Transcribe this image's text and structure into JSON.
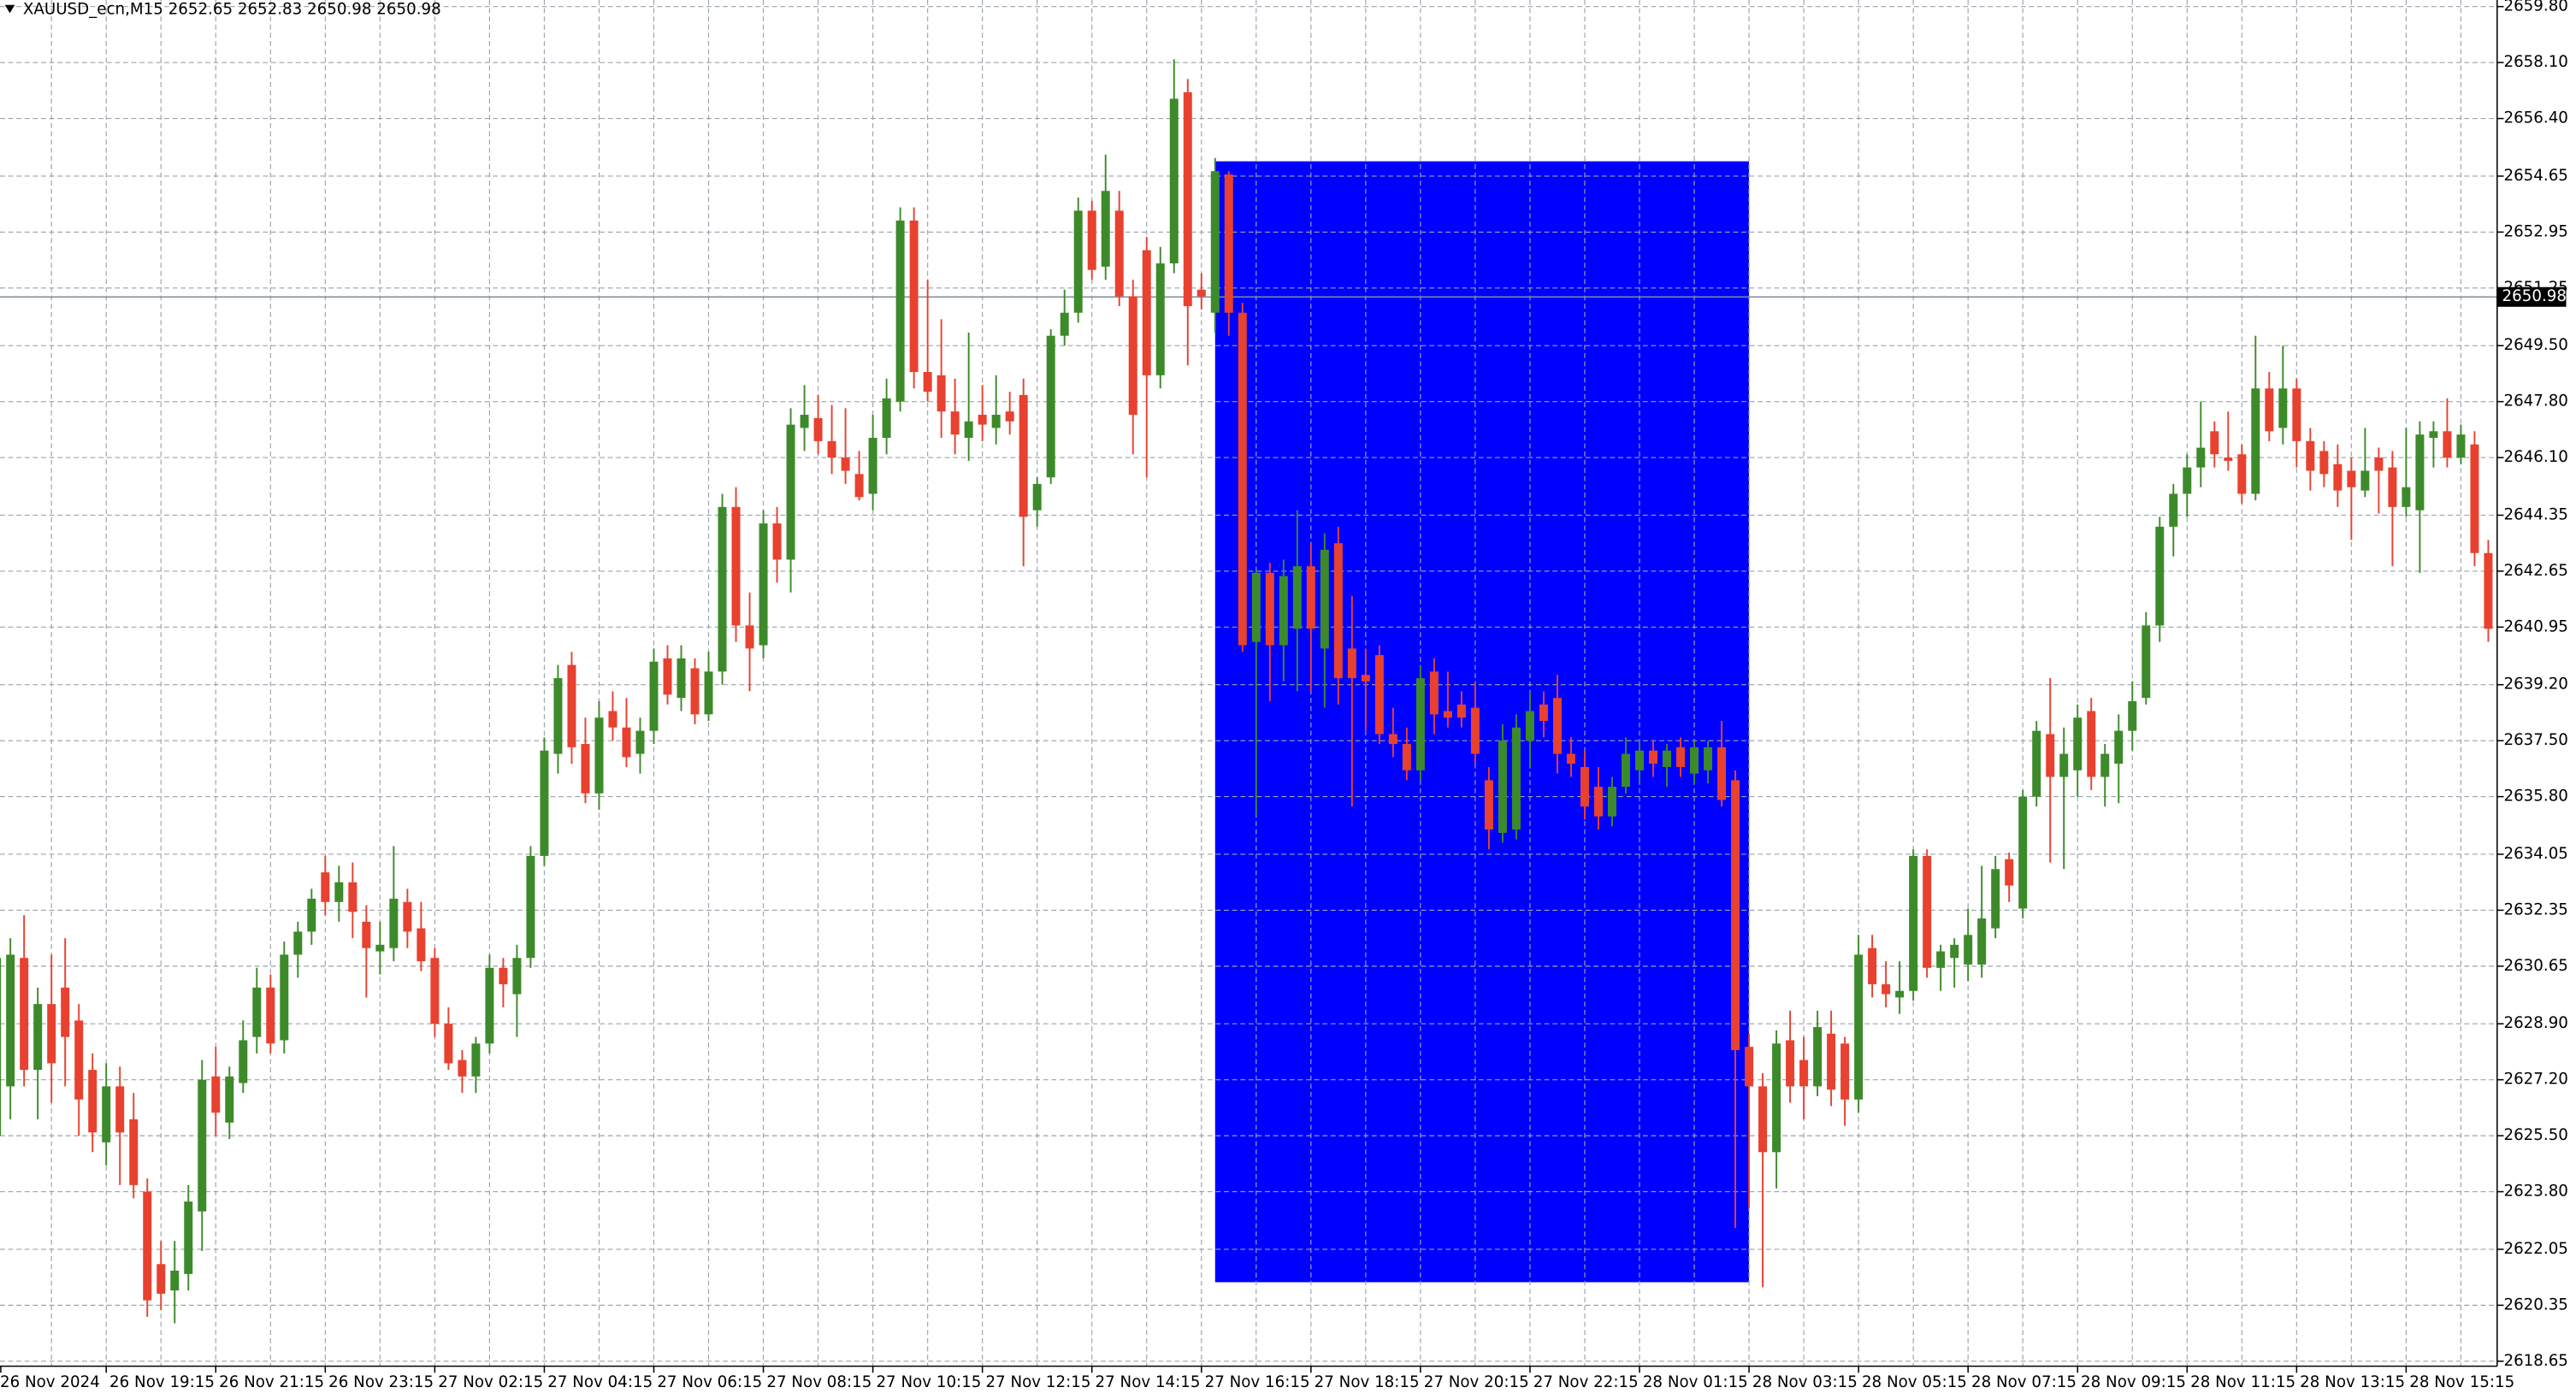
{
  "chart_data": {
    "type": "candlestick",
    "title": "XAUUSD_ecn,M15  2652.65 2652.83 2650.98 2650.98",
    "up_color": "#3d8a2a",
    "down_color": "#e8412f",
    "grid": true,
    "ylim": [
      2618.5,
      2660.0
    ],
    "yticks": [
      {
        "value": 2659.8,
        "label": "2659.80"
      },
      {
        "value": 2658.1,
        "label": "2658.10"
      },
      {
        "value": 2656.4,
        "label": "2656.40"
      },
      2654.65,
      2652.95,
      2651.25,
      {
        "value": 2649.5,
        "label": "2649.50"
      },
      {
        "value": 2647.8,
        "label": "2647.80"
      },
      {
        "value": 2646.1,
        "label": "2646.10"
      },
      2644.35,
      2642.65,
      2640.95,
      {
        "value": 2639.2,
        "label": "2639.20"
      },
      {
        "value": 2637.5,
        "label": "2637.50"
      },
      {
        "value": 2635.8,
        "label": "2635.80"
      },
      2634.05,
      2632.35,
      2630.65,
      {
        "value": 2628.9,
        "label": "2628.90"
      },
      {
        "value": 2627.2,
        "label": "2627.20"
      },
      {
        "value": 2625.5,
        "label": "2625.50"
      },
      {
        "value": 2623.8,
        "label": "2623.80"
      },
      2622.05,
      2620.35,
      2618.65
    ],
    "current_price": 2650.98,
    "rectangle": {
      "color": "#0000ff",
      "x": [
        89,
        128
      ],
      "y": [
        2621.05,
        2655.1
      ]
    },
    "categories": [
      "26 Nov 2024",
      null,
      null,
      null,
      null,
      null,
      null,
      null,
      "26 Nov 19:15",
      null,
      null,
      null,
      null,
      null,
      null,
      null,
      "26 Nov 21:15",
      null,
      null,
      null,
      null,
      null,
      null,
      null,
      "26 Nov 23:15",
      null,
      null,
      null,
      null,
      null,
      null,
      null,
      "27 Nov 02:15",
      null,
      null,
      null,
      null,
      null,
      null,
      null,
      "27 Nov 04:15",
      null,
      null,
      null,
      null,
      null,
      null,
      null,
      "27 Nov 06:15",
      null,
      null,
      null,
      null,
      null,
      null,
      null,
      "27 Nov 08:15",
      null,
      null,
      null,
      null,
      null,
      null,
      null,
      "27 Nov 10:15",
      null,
      null,
      null,
      null,
      null,
      null,
      null,
      "27 Nov 12:15",
      null,
      null,
      null,
      null,
      null,
      null,
      null,
      "27 Nov 14:15",
      null,
      null,
      null,
      null,
      null,
      null,
      null,
      "27 Nov 16:15",
      null,
      null,
      null,
      null,
      null,
      null,
      null,
      "27 Nov 18:15",
      null,
      null,
      null,
      null,
      null,
      null,
      null,
      "27 Nov 20:15",
      null,
      null,
      null,
      null,
      null,
      null,
      null,
      "27 Nov 22:15",
      null,
      null,
      null,
      null,
      null,
      null,
      null,
      "28 Nov 01:15",
      null,
      null,
      null,
      null,
      null,
      null,
      null,
      "28 Nov 03:15",
      null,
      null,
      null,
      null,
      null,
      null,
      null,
      "28 Nov 05:15",
      null,
      null,
      null,
      null,
      null,
      null,
      null,
      "28 Nov 07:15",
      null,
      null,
      null,
      null,
      null,
      null,
      null,
      "28 Nov 09:15",
      null,
      null,
      null,
      null,
      null,
      null,
      null,
      "28 Nov 11:15",
      null,
      null,
      null,
      null,
      null,
      null,
      null,
      "28 Nov 13:15",
      null,
      null,
      null,
      null,
      null,
      null,
      null,
      "28 Nov 15:15",
      null,
      null,
      null,
      null,
      null,
      null
    ],
    "open": [
      2625.5,
      2627,
      2630.9,
      2627.5,
      2629.5,
      2630,
      2629,
      2627.5,
      2625.3,
      2627,
      2626,
      2623.8,
      2621.6,
      2620.8,
      2621.3,
      2623.2,
      2627.3,
      2625.9,
      2627.1,
      2628.5,
      2630,
      2628.4,
      2631,
      2631.7,
      2633.5,
      2632.6,
      2633.2,
      2632,
      2631.1,
      2631.2,
      2632.6,
      2631.8,
      2630.9,
      2628.9,
      2627.8,
      2627.3,
      2628.3,
      2630.6,
      2629.8,
      2630.9,
      2634,
      2637.1,
      2639.8,
      2637.4,
      2635.9,
      2638.4,
      2637.9,
      2637.1,
      2637.8,
      2640,
      2638.8,
      2639.7,
      2638.3,
      2639.6,
      2644.6,
      2641,
      2640.4,
      2644.1,
      2643,
      2647,
      2647.3,
      2646.6,
      2646.1,
      2645.6,
      2645,
      2646.7,
      2647.8,
      2653.3,
      2648.7,
      2648.6,
      2647.5,
      2646.7,
      2647.4,
      2647,
      2647.5,
      2648,
      2644.5,
      2645.5,
      2649.8,
      2650.5,
      2653.6,
      2651.9,
      2653.6,
      2651,
      2652.4,
      2648.6,
      2652,
      2657.2,
      2651.2,
      2650.5,
      2654.7,
      2650.5,
      2640.5,
      2642.6,
      2640.4,
      2640.9,
      2642.8,
      2640.3,
      2643.5,
      2640.3,
      2639.5,
      2640.1,
      2637.7,
      2637.4,
      2636.6,
      2639.6,
      2638.4,
      2638.6,
      2638.5,
      2636.3,
      2634.7,
      2634.8,
      2637.5,
      2638.6,
      2638.8,
      2637.1,
      2636.7,
      2636.1,
      2635.2,
      2636.1,
      2636.6,
      2637.2,
      2636.7,
      2637.3,
      2636.5,
      2636.6,
      2637.3,
      2636.3,
      2628.2,
      2627,
      2625,
      2628.4,
      2627.8,
      2627,
      2628.6,
      2628.3,
      2626.6,
      2631.2,
      2630.1,
      2629.7,
      2629.9,
      2634,
      2630.6,
      2630.9,
      2630.7,
      2630.7,
      2631.8,
      2633.9,
      2632.4,
      2635.8,
      2637.7,
      2636.4,
      2636.6,
      2638.4,
      2636.4,
      2636.8,
      2637.8,
      2638.8,
      2641,
      2644,
      2645,
      2645.8,
      2646.9,
      2646.1,
      2646.2,
      2645,
      2648.2,
      2647,
      2648.2,
      2646.6,
      2646.3,
      2645.9,
      2645.7,
      2645.1,
      2646.1,
      2645.8,
      2644.6,
      2644.5,
      2646.7,
      2646.9,
      2646.1,
      2646.5,
      2643.2
    ],
    "high": [
      2631,
      2631.5,
      2632.2,
      2630,
      2631,
      2631.5,
      2629.5,
      2628,
      2627.7,
      2627.6,
      2626.8,
      2624.2,
      2622.3,
      2622.3,
      2624,
      2627.8,
      2628.2,
      2627.6,
      2629,
      2630.6,
      2630.4,
      2631.4,
      2632,
      2633,
      2634,
      2633.7,
      2633.8,
      2632.5,
      2632,
      2634.3,
      2633,
      2632.6,
      2631.2,
      2629.4,
      2628.1,
      2628.5,
      2631,
      2630.9,
      2631.3,
      2634.3,
      2637.6,
      2639.8,
      2640.2,
      2638.2,
      2638.7,
      2639,
      2638.8,
      2638.2,
      2640.3,
      2640.4,
      2640.4,
      2640,
      2640.2,
      2645,
      2645.2,
      2642,
      2644.5,
      2644.6,
      2647.6,
      2648.3,
      2648,
      2647.7,
      2647.6,
      2646.3,
      2647.4,
      2648.5,
      2653.7,
      2653.7,
      2651.5,
      2650.3,
      2648.5,
      2649.9,
      2648.3,
      2648.6,
      2648.1,
      2648.5,
      2645.5,
      2650,
      2651.2,
      2654,
      2653.9,
      2655.3,
      2654.2,
      2651.5,
      2652.8,
      2652.5,
      2658.2,
      2657.6,
      2651.7,
      2655.2,
      2654.8,
      2650.8,
      2642.7,
      2642.9,
      2643,
      2644.5,
      2643.5,
      2643.8,
      2644,
      2641.9,
      2640.3,
      2640.4,
      2638.5,
      2637.9,
      2639.8,
      2640,
      2639.6,
      2639,
      2639.3,
      2636.7,
      2638,
      2638.3,
      2639,
      2639,
      2639.5,
      2637.6,
      2637.2,
      2636.7,
      2636.4,
      2637.6,
      2637.5,
      2637.5,
      2637.4,
      2637.6,
      2637.5,
      2637.5,
      2638.1,
      2636.6,
      2628.6,
      2627.4,
      2628.7,
      2629.3,
      2628.5,
      2629.3,
      2629.3,
      2628.5,
      2631.6,
      2631.6,
      2630.8,
      2630.8,
      2634.2,
      2634.2,
      2631.3,
      2631.5,
      2632.4,
      2633.7,
      2634,
      2634.1,
      2636,
      2638.1,
      2639.4,
      2637.9,
      2638.6,
      2638.8,
      2637.4,
      2638.3,
      2639.3,
      2641.4,
      2644.3,
      2645.3,
      2646.2,
      2647.8,
      2647.2,
      2647.5,
      2646.5,
      2649.8,
      2648.7,
      2649.5,
      2648.5,
      2647,
      2646.6,
      2646.5,
      2646.1,
      2647,
      2646.4,
      2646.3,
      2647,
      2647.2,
      2647.2,
      2647.9,
      2647.1,
      2646.9,
      2643.6
    ],
    "low": [
      2623.8,
      2626,
      2627,
      2626,
      2626.5,
      2627,
      2625.5,
      2625,
      2624.6,
      2624,
      2623.6,
      2620,
      2620.2,
      2619.8,
      2620.8,
      2622,
      2625.5,
      2625.4,
      2626.8,
      2628,
      2628,
      2628,
      2630.3,
      2631.3,
      2632.2,
      2632,
      2631.5,
      2629.7,
      2630.4,
      2630.8,
      2631.2,
      2630.5,
      2628.5,
      2627.5,
      2626.8,
      2626.8,
      2628,
      2629.4,
      2628.5,
      2630.6,
      2633.7,
      2636.5,
      2636.8,
      2635.6,
      2635.4,
      2637.5,
      2636.7,
      2636.5,
      2637.4,
      2638.6,
      2638.4,
      2638,
      2638.1,
      2639.2,
      2640.5,
      2639,
      2640,
      2642.3,
      2642,
      2646.3,
      2646.2,
      2645.6,
      2645.3,
      2644.8,
      2644.5,
      2646.2,
      2647.5,
      2648.2,
      2647.8,
      2646.7,
      2646.2,
      2646,
      2646.6,
      2646.5,
      2646.8,
      2642.8,
      2644,
      2645.3,
      2649.5,
      2650.2,
      2651.5,
      2651.5,
      2650.7,
      2646.2,
      2645.5,
      2648.2,
      2651.7,
      2648.9,
      2650.6,
      2649.9,
      2649.8,
      2640.2,
      2635.3,
      2638.7,
      2639.3,
      2639,
      2639,
      2638.5,
      2638.6,
      2635.5,
      2637.8,
      2637.4,
      2637,
      2636.3,
      2636.3,
      2637.7,
      2637.9,
      2637.9,
      2636.8,
      2634.2,
      2634.4,
      2634.5,
      2636.7,
      2637.6,
      2636.5,
      2636.4,
      2635.1,
      2634.8,
      2634.9,
      2635.9,
      2636.2,
      2636.4,
      2636.1,
      2636.4,
      2636.2,
      2636.2,
      2635.5,
      2622.7,
      2623.3,
      2620.9,
      2623.9,
      2626.5,
      2626,
      2626.7,
      2626.4,
      2625.8,
      2626.2,
      2629.7,
      2629.4,
      2629.2,
      2629.6,
      2630.3,
      2629.9,
      2630,
      2630.2,
      2630.3,
      2631.5,
      2632.6,
      2632.1,
      2635.5,
      2633.8,
      2633.6,
      2635.8,
      2636,
      2635.5,
      2635.6,
      2637.2,
      2638.6,
      2640.5,
      2643.1,
      2644.3,
      2645.2,
      2645.8,
      2645.7,
      2644.7,
      2644.8,
      2646.6,
      2646.5,
      2645.8,
      2645.1,
      2645.2,
      2644.6,
      2643.6,
      2644.9,
      2644.4,
      2642.8,
      2644.3,
      2642.6,
      2645.8,
      2645.8,
      2645.9,
      2642.8,
      2640.5
    ],
    "close": [
      2630.9,
      2631,
      2627.5,
      2629.5,
      2627.7,
      2628.5,
      2626.6,
      2625.6,
      2627,
      2625.6,
      2624,
      2620.5,
      2620.7,
      2621.4,
      2623.5,
      2627.2,
      2626.2,
      2627.3,
      2628.4,
      2630,
      2628.3,
      2631,
      2631.7,
      2632.7,
      2632.6,
      2633.2,
      2632.3,
      2631.2,
      2631.3,
      2632.7,
      2631.7,
      2630.8,
      2628.9,
      2627.7,
      2627.3,
      2628.3,
      2630.6,
      2630.1,
      2630.9,
      2634,
      2637.2,
      2639.4,
      2637.3,
      2635.9,
      2638.2,
      2637.9,
      2637,
      2637.8,
      2639.9,
      2638.9,
      2640,
      2638.3,
      2639.6,
      2644.6,
      2641,
      2640.3,
      2644.1,
      2643,
      2647.1,
      2647.4,
      2646.6,
      2646.1,
      2645.7,
      2644.9,
      2646.7,
      2647.9,
      2653.3,
      2648.7,
      2648.1,
      2647.5,
      2646.8,
      2647.2,
      2647.1,
      2647.4,
      2647.2,
      2644.3,
      2645.3,
      2649.8,
      2650.5,
      2653.6,
      2651.8,
      2654.2,
      2651,
      2647.4,
      2648.6,
      2652,
      2657,
      2650.7,
      2651,
      2654.8,
      2650.5,
      2640.4,
      2642.6,
      2640.4,
      2642.5,
      2642.8,
      2640.9,
      2643.3,
      2639.4,
      2639.4,
      2639.3,
      2637.7,
      2637.4,
      2636.6,
      2639.4,
      2638.3,
      2638.2,
      2638.2,
      2637.1,
      2634.8,
      2637.5,
      2637.9,
      2638.4,
      2638.1,
      2637.1,
      2636.8,
      2635.5,
      2635.2,
      2636.1,
      2637.1,
      2637.2,
      2636.8,
      2637.2,
      2636.7,
      2637.3,
      2637.3,
      2635.7,
      2628.1,
      2627,
      2625,
      2628.3,
      2627,
      2627,
      2628.8,
      2626.9,
      2626.6,
      2631,
      2630.1,
      2629.8,
      2629.9,
      2634,
      2630.6,
      2631.1,
      2631.3,
      2631.6,
      2632.1,
      2633.6,
      2633.1,
      2635.8,
      2637.8,
      2636.4,
      2637.1,
      2638.2,
      2636.4,
      2637.1,
      2637.8,
      2638.7,
      2641,
      2644,
      2645,
      2645.8,
      2646.4,
      2646.2,
      2646,
      2645,
      2648.2,
      2646.9,
      2648.2,
      2646.6,
      2645.7,
      2645.6,
      2645.1,
      2645.2,
      2645.7,
      2645.7,
      2644.6,
      2645.2,
      2646.8,
      2646.9,
      2646.1,
      2646.8,
      2643.2,
      2640.9
    ]
  }
}
